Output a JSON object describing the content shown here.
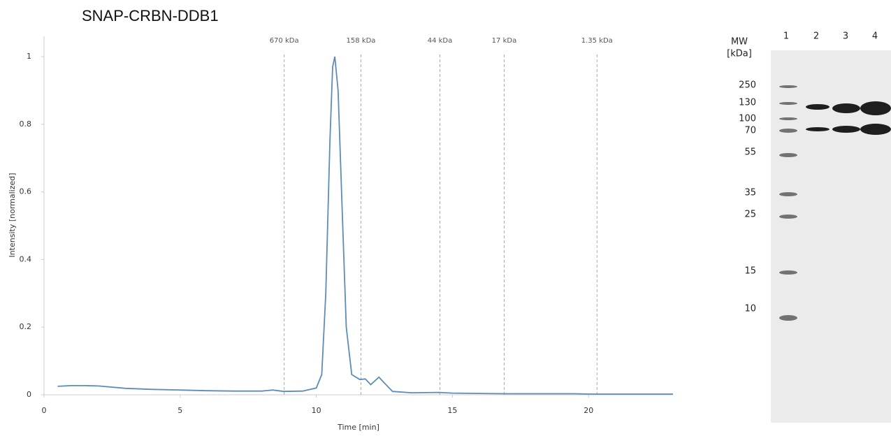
{
  "chart_data": {
    "type": "line",
    "title": "SNAP-CRBN-DDB1",
    "x_label": "Time [min]",
    "y_label": "Intensity [normalized]",
    "xlim": [
      0,
      23.1
    ],
    "ylim": [
      0,
      1.06
    ],
    "xticks": [
      0,
      5,
      10,
      15,
      20
    ],
    "yticks": [
      0,
      0.2,
      0.4,
      0.6,
      0.8,
      1
    ],
    "series": [
      {
        "color": "#5b8db8",
        "x": [
          0.5,
          1,
          1.5,
          2,
          3,
          4,
          5,
          6,
          7,
          8,
          8.4,
          8.8,
          9.5,
          10,
          10.2,
          10.35,
          10.5,
          10.6,
          10.68,
          10.8,
          10.95,
          11.1,
          11.3,
          11.6,
          11.8,
          12.0,
          12.3,
          12.5,
          12.8,
          13.5,
          14.5,
          15,
          16,
          17,
          18,
          19.5,
          20,
          23.1
        ],
        "values": [
          0.025,
          0.027,
          0.027,
          0.026,
          0.019,
          0.016,
          0.014,
          0.012,
          0.011,
          0.011,
          0.014,
          0.01,
          0.011,
          0.02,
          0.06,
          0.3,
          0.75,
          0.97,
          1.0,
          0.9,
          0.55,
          0.2,
          0.06,
          0.045,
          0.047,
          0.03,
          0.052,
          0.035,
          0.01,
          0.006,
          0.007,
          0.005,
          0.004,
          0.003,
          0.003,
          0.003,
          0.002,
          0.002
        ]
      }
    ],
    "markers": [
      {
        "x": 8.82,
        "label": "670 kDa"
      },
      {
        "x": 11.64,
        "label": "158 kDa"
      },
      {
        "x": 14.54,
        "label": "44 kDa"
      },
      {
        "x": 16.9,
        "label": "17 kDa"
      },
      {
        "x": 20.31,
        "label": "1.35 kDa"
      }
    ]
  },
  "gel": {
    "mw_header": [
      "MW",
      "[kDa]"
    ],
    "lanes": [
      "1",
      "2",
      "3",
      "4"
    ],
    "mw_labels": [
      "250",
      "130",
      "100",
      "70",
      "55",
      "35",
      "25",
      "15",
      "10"
    ]
  }
}
